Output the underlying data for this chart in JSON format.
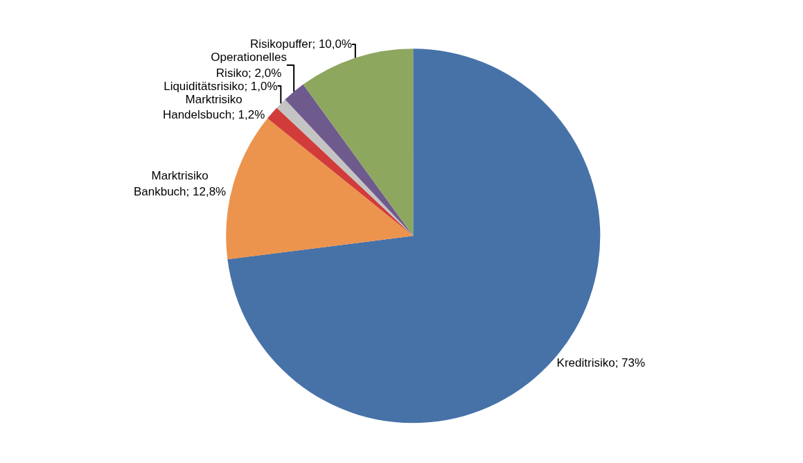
{
  "chart_data": {
    "type": "pie",
    "categories": [
      "Kreditrisiko",
      "Marktrisiko Bankbuch",
      "Marktrisiko Handelsbuch",
      "Liquiditätsrisiko",
      "Operationelles Risiko",
      "Risikopuffer"
    ],
    "values": [
      73,
      12.8,
      1.2,
      1.0,
      2.0,
      10.0
    ],
    "colors": [
      "#4672a8",
      "#ec944e",
      "#d13c3a",
      "#c4c4c4",
      "#6f5a8e",
      "#8da75f"
    ],
    "value_labels": [
      "73%",
      "12,8%",
      "1,2%",
      "1,0%",
      "2,0%",
      "10,0%"
    ],
    "legend": false
  }
}
